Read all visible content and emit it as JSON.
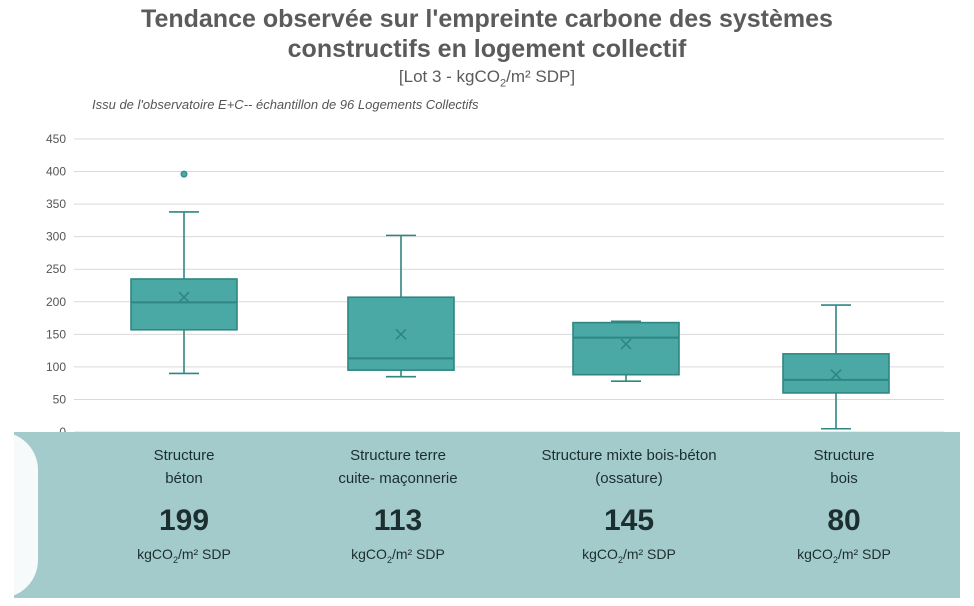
{
  "chart_data": {
    "type": "box",
    "title_line1": "Tendance observée sur l'empreinte carbone des systèmes",
    "title_line2": "constructifs en logement collectif",
    "subtitle_prefix": "[Lot 3 - kgCO",
    "subtitle_sub": "2",
    "subtitle_suffix": "/m² SDP]",
    "source": "Issu de l'observatoire E+C-- échantillon de 96 Logements Collectifs",
    "ylim": [
      0,
      450
    ],
    "yticks": [
      "0",
      "50",
      "100",
      "150",
      "200",
      "250",
      "300",
      "350",
      "400",
      "450"
    ],
    "grid": true,
    "colors": {
      "box": "#4aa9a5",
      "box_stroke": "#2f8682",
      "banner": "#a3cbcc",
      "text": "#1c2e2f"
    },
    "series": [
      {
        "label_line1": "Structure",
        "label_line2": "béton",
        "min": 90,
        "q1": 157,
        "median": 199,
        "q3": 235,
        "max": 338,
        "mean": 207,
        "outliers": [
          396
        ],
        "median_label": "199"
      },
      {
        "label_line1": "Structure terre",
        "label_line2": "cuite- maçonnerie",
        "min": 85,
        "q1": 95,
        "median": 113,
        "q3": 207,
        "max": 302,
        "mean": 150,
        "outliers": [],
        "median_label": "113"
      },
      {
        "label_line1": "Structure mixte bois-béton",
        "label_line2": "(ossature)",
        "min": 78,
        "q1": 88,
        "median": 145,
        "q3": 168,
        "max": 170,
        "mean": 135,
        "outliers": [],
        "median_label": "145"
      },
      {
        "label_line1": "Structure",
        "label_line2": "bois",
        "min": 5,
        "q1": 60,
        "median": 80,
        "q3": 120,
        "max": 195,
        "mean": 88,
        "outliers": [],
        "median_label": "80"
      }
    ],
    "unit_prefix": "kgCO",
    "unit_sub": "2",
    "unit_suffix": "/m² SDP"
  }
}
